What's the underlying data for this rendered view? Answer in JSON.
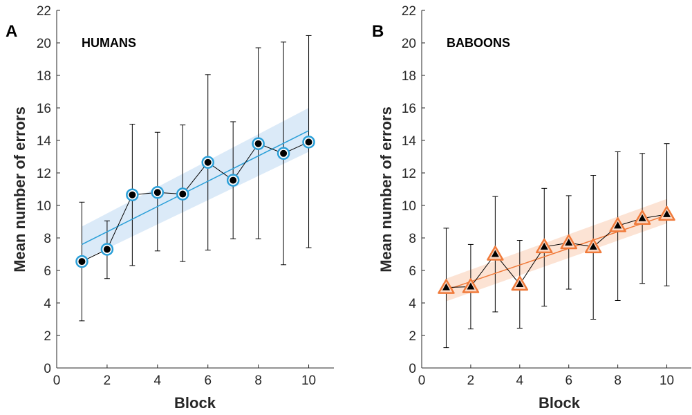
{
  "chart_data": [
    {
      "type": "scatter",
      "panel_letter": "A",
      "title": "HUMANS",
      "xlabel": "Block",
      "ylabel": "Mean number of errors",
      "xlim": [
        0,
        11
      ],
      "ylim": [
        0,
        22
      ],
      "xticks": [
        0,
        2,
        4,
        6,
        8,
        10
      ],
      "yticks": [
        0,
        2,
        4,
        6,
        8,
        10,
        12,
        14,
        16,
        18,
        20,
        22
      ],
      "grid": false,
      "marker": "circle",
      "marker_fill": "#000000",
      "marker_edge": "#2a9fd8",
      "fit_color": "#2a9fd8",
      "band_color": "#cfe3f5",
      "line_color": "#000000",
      "x": [
        1,
        2,
        3,
        4,
        5,
        6,
        7,
        8,
        9,
        10
      ],
      "y": [
        6.55,
        7.3,
        10.65,
        10.8,
        10.7,
        12.65,
        11.55,
        13.8,
        13.2,
        13.9
      ],
      "err_low": [
        2.9,
        5.5,
        6.3,
        7.2,
        6.55,
        7.25,
        7.95,
        7.95,
        6.35,
        7.4
      ],
      "err_high": [
        10.2,
        9.05,
        15.0,
        14.5,
        14.95,
        18.05,
        15.15,
        19.7,
        20.05,
        20.45
      ],
      "fit": {
        "x": [
          1,
          10
        ],
        "y": [
          7.6,
          14.6
        ]
      },
      "band": {
        "x": [
          1,
          10
        ],
        "lower": [
          6.6,
          13.3
        ],
        "upper": [
          8.7,
          16.0
        ]
      }
    },
    {
      "type": "scatter",
      "panel_letter": "B",
      "title": "BABOONS",
      "xlabel": "Block",
      "ylabel": "Mean number of errors",
      "xlim": [
        0,
        11
      ],
      "ylim": [
        0,
        22
      ],
      "xticks": [
        0,
        2,
        4,
        6,
        8,
        10
      ],
      "yticks": [
        0,
        2,
        4,
        6,
        8,
        10,
        12,
        14,
        16,
        18,
        20,
        22
      ],
      "grid": false,
      "marker": "triangle",
      "marker_fill": "#000000",
      "marker_edge": "#f07a3a",
      "fit_color": "#f07a3a",
      "band_color": "#fbd9c6",
      "line_color": "#000000",
      "x": [
        1,
        2,
        3,
        4,
        5,
        6,
        7,
        8,
        9,
        10
      ],
      "y": [
        4.95,
        5.0,
        7.0,
        5.15,
        7.45,
        7.7,
        7.45,
        8.75,
        9.2,
        9.45
      ],
      "err_low": [
        1.25,
        2.4,
        3.45,
        2.45,
        3.8,
        4.85,
        3.0,
        4.15,
        5.2,
        5.05
      ],
      "err_high": [
        8.6,
        7.6,
        10.55,
        7.85,
        11.05,
        10.6,
        11.85,
        13.3,
        13.2,
        13.8
      ],
      "fit": {
        "x": [
          1,
          10
        ],
        "y": [
          4.8,
          9.4
        ]
      },
      "band": {
        "x": [
          1,
          10
        ],
        "lower": [
          4.1,
          8.9
        ],
        "upper": [
          5.5,
          10.4
        ]
      }
    }
  ]
}
